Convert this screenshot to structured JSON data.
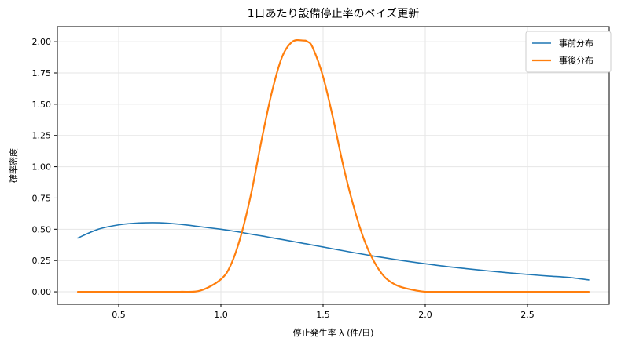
{
  "chart_data": {
    "type": "line",
    "title": "1日あたり設備停止率のベイズ更新",
    "xlabel": "停止発生率 λ (件/日)",
    "ylabel": "確率密度",
    "xlim": [
      0.2,
      2.9
    ],
    "ylim": [
      -0.1,
      2.12
    ],
    "x_ticks": [
      0.5,
      1.0,
      1.5,
      2.0,
      2.5
    ],
    "x_tick_labels": [
      "0.5",
      "1.0",
      "1.5",
      "2.0",
      "2.5"
    ],
    "y_ticks": [
      0.0,
      0.25,
      0.5,
      0.75,
      1.0,
      1.25,
      1.5,
      1.75,
      2.0
    ],
    "y_tick_labels": [
      "0.00",
      "0.25",
      "0.50",
      "0.75",
      "1.00",
      "1.25",
      "1.50",
      "1.75",
      "2.00"
    ],
    "grid": true,
    "legend_position": "top-right",
    "x": [
      0.3,
      0.4,
      0.5,
      0.6,
      0.7,
      0.8,
      0.9,
      1.0,
      1.05,
      1.1,
      1.15,
      1.2,
      1.25,
      1.3,
      1.35,
      1.4,
      1.425,
      1.45,
      1.5,
      1.55,
      1.6,
      1.65,
      1.7,
      1.75,
      1.8,
      1.85,
      1.9,
      2.0,
      2.1,
      2.2,
      2.3,
      2.4,
      2.5,
      2.6,
      2.7,
      2.8
    ],
    "series": [
      {
        "name": "事前分布",
        "color": "#1f77b4",
        "line_width": 1.6,
        "values": [
          0.43,
          0.5,
          0.535,
          0.55,
          0.552,
          0.54,
          0.52,
          0.5,
          0.488,
          0.475,
          0.46,
          0.447,
          0.432,
          0.418,
          0.403,
          0.388,
          0.381,
          0.373,
          0.358,
          0.343,
          0.328,
          0.313,
          0.299,
          0.285,
          0.272,
          0.259,
          0.247,
          0.224,
          0.203,
          0.185,
          0.168,
          0.153,
          0.139,
          0.126,
          0.115,
          0.095
        ]
      },
      {
        "name": "事後分布",
        "color": "#ff7f0e",
        "line_width": 2.2,
        "values": [
          0.0,
          0.0,
          0.0,
          0.0,
          0.0,
          0.0,
          0.01,
          0.1,
          0.22,
          0.46,
          0.8,
          1.22,
          1.6,
          1.88,
          2.0,
          2.01,
          2.0,
          1.95,
          1.72,
          1.38,
          1.0,
          0.68,
          0.42,
          0.24,
          0.12,
          0.06,
          0.03,
          0.0,
          0.0,
          0.0,
          0.0,
          0.0,
          0.0,
          0.0,
          0.0,
          0.0
        ]
      }
    ]
  }
}
